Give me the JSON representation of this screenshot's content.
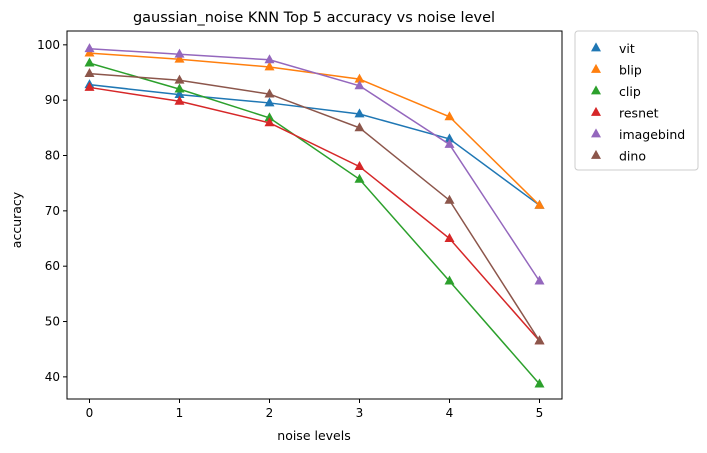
{
  "chart_data": {
    "type": "line",
    "title": "gaussian_noise KNN Top 5 accuracy vs noise level",
    "xlabel": "noise levels",
    "ylabel": "accuracy",
    "x": [
      0,
      1,
      2,
      3,
      4,
      5
    ],
    "xlim": [
      -0.25,
      5.25
    ],
    "ylim": [
      36,
      102.5
    ],
    "xticks": [
      0,
      1,
      2,
      3,
      4,
      5
    ],
    "yticks": [
      40,
      50,
      60,
      70,
      80,
      90,
      100
    ],
    "grid": false,
    "legend": "outside-right",
    "marker": "triangle",
    "series": [
      {
        "name": "vit",
        "color": "#1f77b4",
        "values": [
          92.8,
          91.0,
          89.5,
          87.5,
          83.0,
          71.0
        ]
      },
      {
        "name": "blip",
        "color": "#ff7f0e",
        "values": [
          98.5,
          97.4,
          96.0,
          93.8,
          87.0,
          71.0
        ]
      },
      {
        "name": "clip",
        "color": "#2ca02c",
        "values": [
          96.7,
          92.0,
          86.8,
          75.7,
          57.3,
          38.7
        ]
      },
      {
        "name": "resnet",
        "color": "#d62728",
        "values": [
          92.3,
          89.8,
          85.9,
          78.0,
          65.0,
          46.5
        ]
      },
      {
        "name": "imagebind",
        "color": "#9467bd",
        "values": [
          99.3,
          98.3,
          97.3,
          92.6,
          82.0,
          57.3
        ]
      },
      {
        "name": "dino",
        "color": "#8c564b",
        "values": [
          94.8,
          93.6,
          91.1,
          85.0,
          71.9,
          46.5
        ]
      }
    ]
  }
}
